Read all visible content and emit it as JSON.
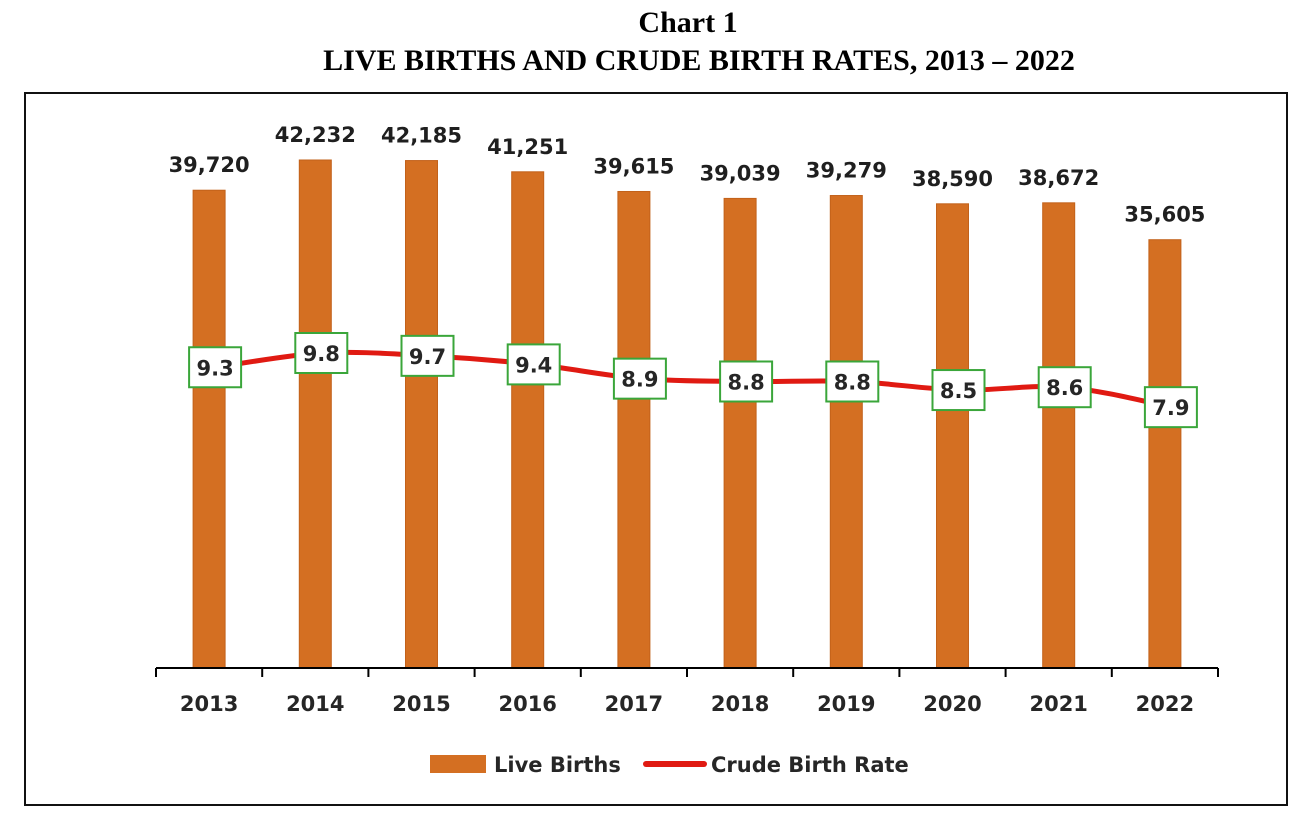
{
  "title_line1": "Chart 1",
  "title_line2": "LIVE BIRTHS AND CRUDE BIRTH RATES, 2013 – 2022",
  "colors": {
    "bar": "#d46f22",
    "bar_edge": "#c2611a",
    "line": "#e01a12",
    "label_box_border": "#3aa63a",
    "axis": "#000000"
  },
  "chart_data": {
    "type": "bar",
    "categories": [
      "2013",
      "2014",
      "2015",
      "2016",
      "2017",
      "2018",
      "2019",
      "2020",
      "2021",
      "2022"
    ],
    "series": [
      {
        "name": "Live Births",
        "type": "bar",
        "values": [
          39720,
          42232,
          42185,
          41251,
          39615,
          39039,
          39279,
          38590,
          38672,
          35605
        ],
        "labels": [
          "39,720",
          "42,232",
          "42,185",
          "41,251",
          "39,615",
          "39,039",
          "39,279",
          "38,590",
          "38,672",
          "35,605"
        ]
      },
      {
        "name": "Crude Birth Rate",
        "type": "line",
        "values": [
          9.3,
          9.8,
          9.7,
          9.4,
          8.9,
          8.8,
          8.8,
          8.5,
          8.6,
          7.9
        ],
        "labels": [
          "9.3",
          "9.8",
          "9.7",
          "9.4",
          "8.9",
          "8.8",
          "8.8",
          "8.5",
          "8.6",
          "7.9"
        ]
      }
    ],
    "ylim": [
      0,
      42232
    ],
    "y2lim": [
      0,
      9.8
    ],
    "xlabel": "",
    "ylabel": "",
    "grid": false,
    "legend": "bottom"
  }
}
